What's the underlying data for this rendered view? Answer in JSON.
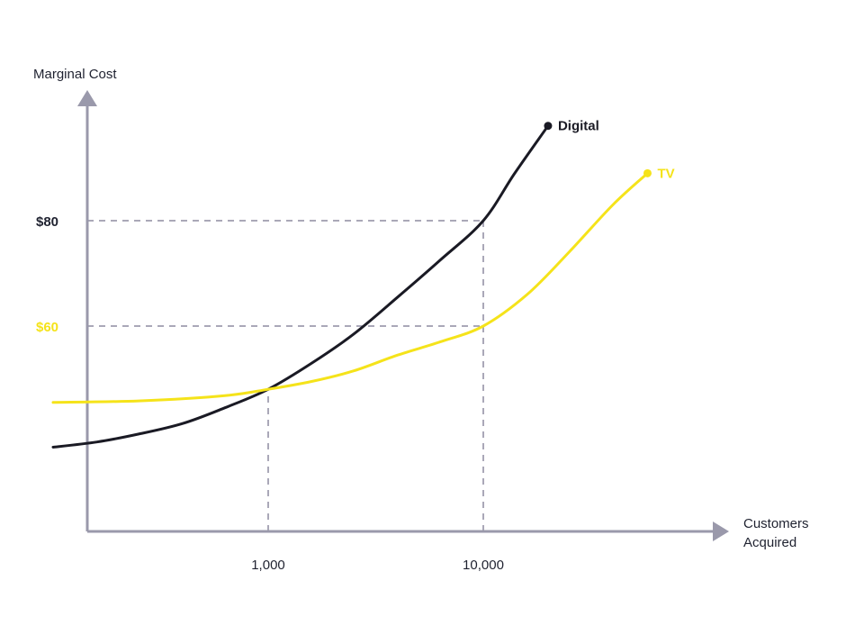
{
  "chart_data": {
    "type": "line",
    "title": "",
    "ylabel": "Marginal Cost",
    "xlabel": "Customers Acquired",
    "xscale": "log",
    "grid": false,
    "x_ticks": [
      {
        "value": 1000,
        "label": "1,000"
      },
      {
        "value": 10000,
        "label": "10,000"
      }
    ],
    "y_ticks": [
      {
        "value": 80,
        "label": "$80",
        "color": "#1f2230"
      },
      {
        "value": 60,
        "label": "$60",
        "color": "#f5e31a"
      }
    ],
    "reference_lines": [
      {
        "type": "horizontal",
        "y": 80,
        "x_end": 10000
      },
      {
        "type": "horizontal",
        "y": 60,
        "x_end": 10000
      },
      {
        "type": "vertical",
        "x": 1000,
        "y_end": 48
      },
      {
        "type": "vertical",
        "x": 10000,
        "y_end": 80
      }
    ],
    "series": [
      {
        "name": "Digital",
        "color": "#1a1a24",
        "points": [
          [
            100,
            37
          ],
          [
            160,
            38
          ],
          [
            250,
            39.5
          ],
          [
            400,
            41.5
          ],
          [
            630,
            44.5
          ],
          [
            1000,
            48
          ],
          [
            1600,
            53
          ],
          [
            2500,
            58.5
          ],
          [
            4000,
            65.5
          ],
          [
            6300,
            72.5
          ],
          [
            10000,
            80
          ],
          [
            14000,
            89
          ],
          [
            20000,
            98
          ]
        ]
      },
      {
        "name": "TV",
        "color": "#f5e31a",
        "points": [
          [
            100,
            45.5
          ],
          [
            250,
            45.8
          ],
          [
            630,
            46.8
          ],
          [
            1000,
            48
          ],
          [
            1600,
            49.5
          ],
          [
            2500,
            51.5
          ],
          [
            4000,
            54.5
          ],
          [
            6300,
            57
          ],
          [
            10000,
            60
          ],
          [
            16000,
            66
          ],
          [
            25000,
            74
          ],
          [
            40000,
            83
          ],
          [
            58000,
            89
          ]
        ]
      }
    ]
  }
}
